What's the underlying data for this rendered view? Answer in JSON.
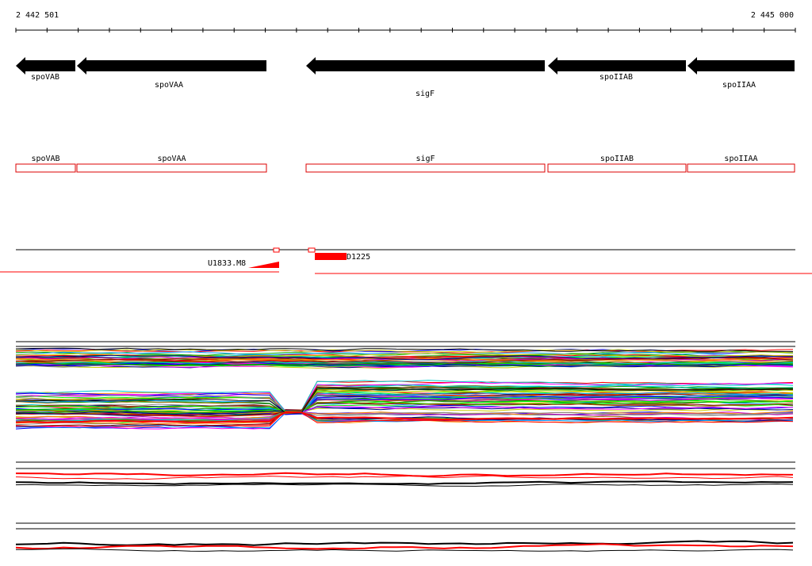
{
  "ruler": {
    "start": "2 442 501",
    "end": "2 445 000"
  },
  "genes": [
    {
      "label": "spoVAB"
    },
    {
      "label": "spoVAA"
    },
    {
      "label": "sigF"
    },
    {
      "label": "spoIIAB"
    },
    {
      "label": "spoIIAA"
    }
  ],
  "annotations": [
    {
      "label": "spoVAB"
    },
    {
      "label": "spoVAA"
    },
    {
      "label": "sigF"
    },
    {
      "label": "spoIIAB"
    },
    {
      "label": "spoIIAA"
    }
  ],
  "features": [
    {
      "label": "U1833.M8"
    },
    {
      "label": "D1225"
    }
  ]
}
